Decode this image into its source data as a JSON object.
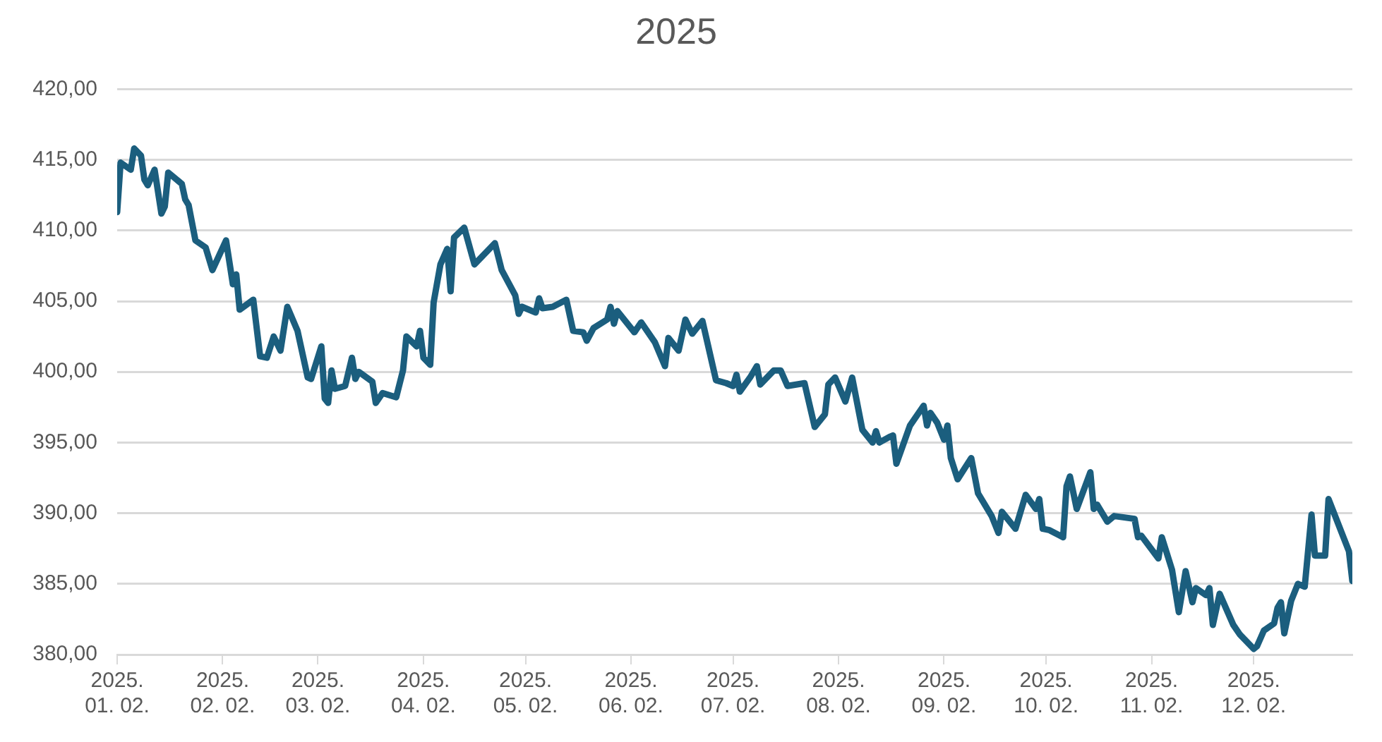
{
  "chart_data": {
    "type": "line",
    "title": "2025",
    "color": "#1b5e7e",
    "grid": "y",
    "legend": false,
    "marker": "none",
    "line_style": "solid",
    "x": [
      "2025-01-02",
      "2025-01-03",
      "2025-01-06",
      "2025-01-07",
      "2025-01-09",
      "2025-01-10",
      "2025-01-11",
      "2025-01-13",
      "2025-01-15",
      "2025-01-16",
      "2025-01-17",
      "2025-01-21",
      "2025-01-22",
      "2025-01-23",
      "2025-01-25",
      "2025-01-28",
      "2025-01-30",
      "2025-02-03",
      "2025-02-05",
      "2025-02-06",
      "2025-02-07",
      "2025-02-11",
      "2025-02-13",
      "2025-02-15",
      "2025-02-17",
      "2025-02-19",
      "2025-02-21",
      "2025-02-24",
      "2025-02-27",
      "2025-02-28",
      "2025-03-03",
      "2025-03-04",
      "2025-03-05",
      "2025-03-06",
      "2025-03-07",
      "2025-03-10",
      "2025-03-12",
      "2025-03-13",
      "2025-03-14",
      "2025-03-18",
      "2025-03-19",
      "2025-03-21",
      "2025-03-25",
      "2025-03-27",
      "2025-03-28",
      "2025-03-31",
      "2025-04-01",
      "2025-04-02",
      "2025-04-04",
      "2025-04-05",
      "2025-04-07",
      "2025-04-09",
      "2025-04-10",
      "2025-04-11",
      "2025-04-14",
      "2025-04-17",
      "2025-04-23",
      "2025-04-25",
      "2025-04-29",
      "2025-04-30",
      "2025-05-01",
      "2025-05-05",
      "2025-05-06",
      "2025-05-07",
      "2025-05-10",
      "2025-05-14",
      "2025-05-16",
      "2025-05-19",
      "2025-05-20",
      "2025-05-22",
      "2025-05-26",
      "2025-05-27",
      "2025-05-28",
      "2025-05-29",
      "2025-06-03",
      "2025-06-05",
      "2025-06-09",
      "2025-06-12",
      "2025-06-13",
      "2025-06-16",
      "2025-06-18",
      "2025-06-20",
      "2025-06-23",
      "2025-06-27",
      "2025-06-30",
      "2025-07-02",
      "2025-07-03",
      "2025-07-04",
      "2025-07-07",
      "2025-07-09",
      "2025-07-10",
      "2025-07-14",
      "2025-07-16",
      "2025-07-18",
      "2025-07-23",
      "2025-07-26",
      "2025-07-29",
      "2025-07-30",
      "2025-08-01",
      "2025-08-04",
      "2025-08-06",
      "2025-08-09",
      "2025-08-12",
      "2025-08-13",
      "2025-08-14",
      "2025-08-17",
      "2025-08-18",
      "2025-08-19",
      "2025-08-23",
      "2025-08-27",
      "2025-08-28",
      "2025-08-29",
      "2025-08-31",
      "2025-09-02",
      "2025-09-03",
      "2025-09-04",
      "2025-09-06",
      "2025-09-10",
      "2025-09-12",
      "2025-09-16",
      "2025-09-18",
      "2025-09-19",
      "2025-09-23",
      "2025-09-26",
      "2025-09-29",
      "2025-09-30",
      "2025-10-01",
      "2025-10-03",
      "2025-10-07",
      "2025-10-08",
      "2025-10-09",
      "2025-10-11",
      "2025-10-15",
      "2025-10-16",
      "2025-10-17",
      "2025-10-20",
      "2025-10-22",
      "2025-10-28",
      "2025-10-29",
      "2025-10-30",
      "2025-11-04",
      "2025-11-05",
      "2025-11-08",
      "2025-11-10",
      "2025-11-12",
      "2025-11-14",
      "2025-11-15",
      "2025-11-18",
      "2025-11-19",
      "2025-11-20",
      "2025-11-22",
      "2025-11-26",
      "2025-11-28",
      "2025-12-02",
      "2025-12-03",
      "2025-12-05",
      "2025-12-08",
      "2025-12-09",
      "2025-12-10",
      "2025-12-11",
      "2025-12-13",
      "2025-12-15",
      "2025-12-17",
      "2025-12-19",
      "2025-12-20",
      "2025-12-23",
      "2025-12-24",
      "2025-12-30",
      "2025-12-31"
    ],
    "values": [
      411.3,
      414.8,
      414.3,
      415.8,
      415.3,
      413.6,
      413.2,
      414.3,
      411.2,
      411.7,
      414.1,
      413.3,
      412.2,
      411.8,
      409.3,
      408.8,
      407.2,
      409.3,
      406.2,
      406.9,
      404.4,
      405.1,
      401.1,
      401.0,
      402.5,
      401.5,
      404.6,
      402.9,
      399.6,
      399.5,
      401.8,
      398.1,
      397.8,
      400.1,
      398.8,
      399.0,
      401.0,
      399.5,
      400.0,
      399.3,
      397.8,
      398.5,
      398.2,
      400.1,
      402.5,
      401.8,
      402.9,
      401.0,
      400.5,
      404.9,
      407.6,
      408.7,
      405.7,
      409.5,
      410.2,
      407.6,
      409.1,
      407.2,
      405.4,
      404.1,
      404.6,
      404.2,
      405.2,
      404.5,
      404.6,
      405.1,
      402.9,
      402.8,
      402.2,
      403.1,
      403.7,
      404.6,
      403.4,
      404.3,
      402.8,
      403.5,
      402.1,
      400.4,
      402.4,
      401.5,
      403.7,
      402.7,
      403.6,
      399.4,
      399.2,
      399.0,
      399.8,
      398.6,
      399.6,
      400.4,
      399.1,
      400.1,
      400.1,
      399.0,
      399.2,
      396.1,
      397.0,
      399.1,
      399.6,
      397.9,
      399.6,
      395.9,
      395.0,
      395.8,
      395.0,
      395.4,
      395.5,
      393.5,
      396.2,
      397.6,
      396.2,
      397.1,
      396.4,
      395.2,
      396.2,
      393.9,
      392.4,
      393.9,
      391.4,
      389.8,
      388.6,
      390.1,
      388.9,
      391.3,
      390.3,
      391.0,
      388.9,
      388.8,
      388.3,
      391.9,
      392.6,
      390.3,
      392.9,
      390.3,
      390.6,
      389.4,
      389.8,
      389.6,
      388.3,
      388.4,
      386.8,
      388.3,
      386.0,
      383.0,
      385.9,
      383.7,
      384.7,
      384.2,
      384.7,
      382.1,
      384.3,
      382.1,
      381.4,
      380.4,
      380.6,
      381.7,
      382.2,
      383.3,
      383.7,
      381.5,
      383.8,
      385.0,
      384.8,
      389.9,
      387.0,
      387.0,
      391.0,
      387.3,
      385.2
    ],
    "xlim": [
      "2025-01-02",
      "2025-12-31"
    ],
    "xticks": [
      {
        "value": "2025-01-02",
        "label": "2025. 01. 02."
      },
      {
        "value": "2025-02-02",
        "label": "2025. 02. 02."
      },
      {
        "value": "2025-03-02",
        "label": "2025. 03. 02."
      },
      {
        "value": "2025-04-02",
        "label": "2025. 04. 02."
      },
      {
        "value": "2025-05-02",
        "label": "2025. 05. 02."
      },
      {
        "value": "2025-06-02",
        "label": "2025. 06. 02."
      },
      {
        "value": "2025-07-02",
        "label": "2025. 07. 02."
      },
      {
        "value": "2025-08-02",
        "label": "2025. 08. 02."
      },
      {
        "value": "2025-09-02",
        "label": "2025. 09. 02."
      },
      {
        "value": "2025-10-02",
        "label": "2025. 10. 02."
      },
      {
        "value": "2025-11-02",
        "label": "2025. 11. 02."
      },
      {
        "value": "2025-12-02",
        "label": "2025. 12. 02."
      }
    ],
    "ylim": [
      380,
      420
    ],
    "yticks": [
      {
        "value": 380,
        "label": "380,00"
      },
      {
        "value": 385,
        "label": "385,00"
      },
      {
        "value": 390,
        "label": "390,00"
      },
      {
        "value": 395,
        "label": "395,00"
      },
      {
        "value": 400,
        "label": "400,00"
      },
      {
        "value": 405,
        "label": "405,00"
      },
      {
        "value": 410,
        "label": "410,00"
      },
      {
        "value": 415,
        "label": "415,00"
      },
      {
        "value": 420,
        "label": "420,00"
      }
    ]
  }
}
